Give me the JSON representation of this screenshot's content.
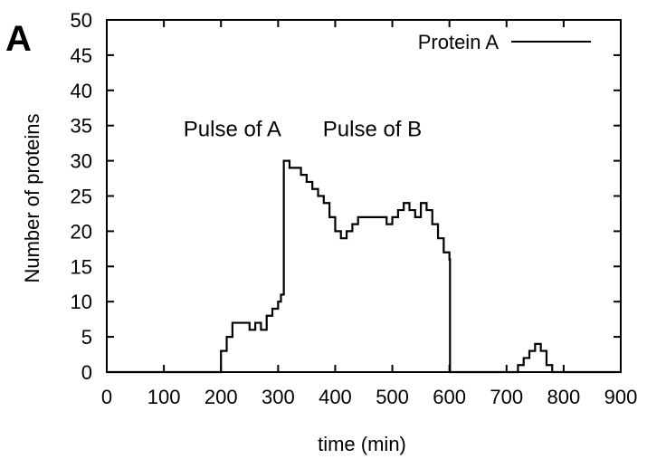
{
  "chart_data": {
    "type": "line",
    "panel_label": "A",
    "title": "",
    "xlabel": "time (min)",
    "ylabel": "Number of proteins",
    "xlim": [
      0,
      900
    ],
    "ylim": [
      0,
      50
    ],
    "xticks": [
      0,
      100,
      200,
      300,
      400,
      500,
      600,
      700,
      800,
      900
    ],
    "yticks": [
      0,
      5,
      10,
      15,
      20,
      25,
      30,
      35,
      40,
      45,
      50
    ],
    "grid": false,
    "legend": {
      "position": "top-right"
    },
    "annotations": [
      {
        "text": "Pulse of A",
        "x": 220,
        "y": 33.5
      },
      {
        "text": "Pulse of B",
        "x": 465,
        "y": 33.5
      }
    ],
    "series": [
      {
        "name": "Protein A",
        "color": "#000000",
        "x": [
          0,
          20,
          40,
          60,
          80,
          100,
          120,
          140,
          160,
          180,
          190,
          200,
          210,
          220,
          230,
          240,
          250,
          260,
          270,
          280,
          290,
          300,
          305,
          310,
          320,
          330,
          340,
          350,
          360,
          370,
          380,
          390,
          400,
          410,
          420,
          430,
          440,
          450,
          460,
          470,
          480,
          490,
          500,
          510,
          520,
          530,
          540,
          550,
          560,
          570,
          580,
          590,
          600,
          601,
          620,
          640,
          660,
          680,
          700,
          710,
          720,
          730,
          740,
          750,
          760,
          770,
          780,
          790,
          800,
          820,
          840,
          860,
          880,
          900
        ],
        "y": [
          0,
          0,
          0,
          0,
          0,
          0,
          0,
          0,
          0,
          0,
          0,
          3,
          5,
          7,
          7,
          7,
          6,
          7,
          6,
          8,
          9,
          10,
          11,
          30,
          29,
          29,
          28,
          27,
          26,
          25,
          24,
          22,
          20,
          19,
          20,
          21,
          22,
          22,
          22,
          22,
          22,
          21,
          22,
          23,
          24,
          23,
          22,
          24,
          23,
          21,
          19,
          17,
          16,
          0,
          0,
          0,
          0,
          0,
          0,
          0,
          1,
          2,
          3,
          4,
          3,
          1,
          0,
          0,
          0,
          0,
          0,
          0,
          0,
          0
        ]
      }
    ]
  }
}
